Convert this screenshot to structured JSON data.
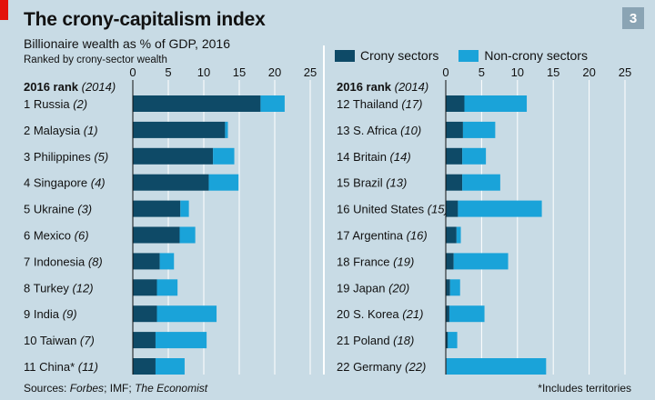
{
  "header": {
    "page_number": "3",
    "title": "The crony-capitalism index",
    "subtitle": "Billionaire wealth as % of GDP, 2016",
    "note": "Ranked by crony-sector wealth"
  },
  "legend": {
    "crony": "Crony sectors",
    "noncrony": "Non-crony sectors"
  },
  "colors": {
    "crony": "#0e4a67",
    "noncrony": "#1aa3d9",
    "background": "#c8dbe5",
    "grid": "#ffffff"
  },
  "footer": {
    "sources_label": "Sources: ",
    "sources_forbes": "Forbes",
    "sources_mid": "; IMF; ",
    "sources_economist": "The Economist",
    "footnote": "*Includes territories"
  },
  "chart_data": [
    {
      "type": "bar",
      "orientation": "horizontal",
      "stacked": true,
      "header_rank": "2016 rank",
      "header_rank_prev": "(2014)",
      "xlim": [
        0,
        25
      ],
      "xticks": [
        "0",
        "5",
        "10",
        "15",
        "20",
        "25"
      ],
      "categories": [
        "1 Russia",
        "2 Malaysia",
        "3 Philippines",
        "4 Singapore",
        "5 Ukraine",
        "6 Mexico",
        "7 Indonesia",
        "8 Turkey",
        "9 India",
        "10 Taiwan",
        "11 China*"
      ],
      "prev_ranks": [
        "(2)",
        "(1)",
        "(5)",
        "(4)",
        "(3)",
        "(6)",
        "(8)",
        "(12)",
        "(9)",
        "(7)",
        "(11)"
      ],
      "series": [
        {
          "name": "Crony sectors",
          "values": [
            18.0,
            13.0,
            11.3,
            10.7,
            6.7,
            6.6,
            3.8,
            3.4,
            3.4,
            3.2,
            3.2
          ]
        },
        {
          "name": "Non-crony sectors",
          "values": [
            3.4,
            0.4,
            3.0,
            4.2,
            1.2,
            2.2,
            2.0,
            2.9,
            8.4,
            7.2,
            4.1
          ]
        }
      ]
    },
    {
      "type": "bar",
      "orientation": "horizontal",
      "stacked": true,
      "header_rank": "2016 rank",
      "header_rank_prev": "(2014)",
      "xlim": [
        0,
        25
      ],
      "xticks": [
        "0",
        "5",
        "10",
        "15",
        "20",
        "25"
      ],
      "categories": [
        "12 Thailand",
        "13 S. Africa",
        "14 Britain",
        "15 Brazil",
        "16 United States",
        "17 Argentina",
        "18 France",
        "19 Japan",
        "20 S. Korea",
        "21 Poland",
        "22 Germany"
      ],
      "prev_ranks": [
        "(17)",
        "(10)",
        "(14)",
        "(13)",
        "(15)",
        "(16)",
        "(19)",
        "(20)",
        "(21)",
        "(18)",
        "(22)"
      ],
      "series": [
        {
          "name": "Crony sectors",
          "values": [
            2.6,
            2.4,
            2.3,
            2.3,
            1.7,
            1.5,
            1.1,
            0.6,
            0.5,
            0.3,
            0.1
          ]
        },
        {
          "name": "Non-crony sectors",
          "values": [
            8.7,
            4.5,
            3.3,
            5.3,
            11.7,
            0.6,
            7.6,
            1.4,
            4.9,
            1.3,
            13.9
          ]
        }
      ]
    }
  ]
}
